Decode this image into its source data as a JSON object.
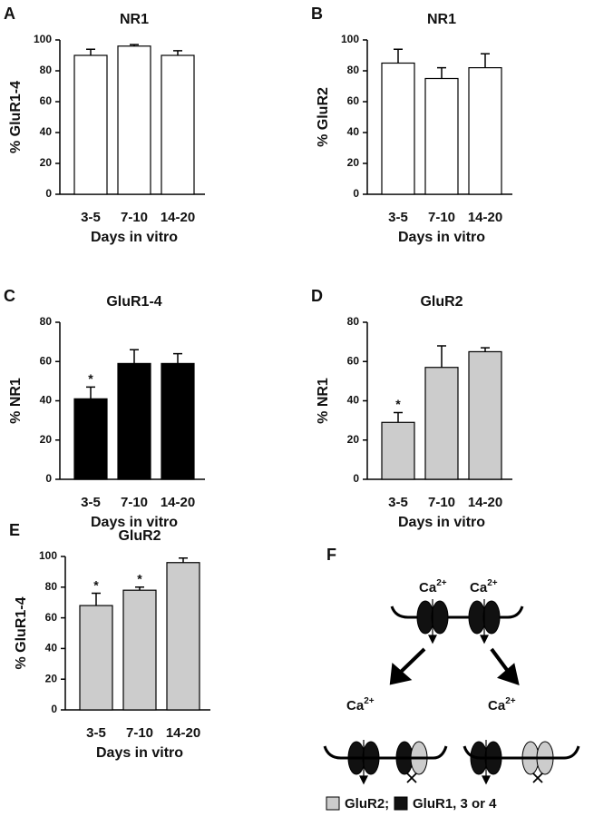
{
  "chart_data": [
    {
      "panel": "A",
      "type": "bar",
      "title": "NR1",
      "ylabel": "% GluR1-4",
      "xlabel": "Days in vitro",
      "categories": [
        "3-5",
        "7-10",
        "14-20"
      ],
      "values": [
        90,
        96,
        90
      ],
      "errors": [
        4,
        1,
        3
      ],
      "color": "#ffffff",
      "ylim": [
        0,
        100
      ],
      "yticks": [
        0,
        20,
        40,
        60,
        80,
        100
      ]
    },
    {
      "panel": "B",
      "type": "bar",
      "title": "NR1",
      "ylabel": "% GluR2",
      "xlabel": "Days in vitro",
      "categories": [
        "3-5",
        "7-10",
        "14-20"
      ],
      "values": [
        85,
        75,
        82
      ],
      "errors": [
        9,
        7,
        9
      ],
      "color": "#ffffff",
      "ylim": [
        0,
        100
      ],
      "yticks": [
        0,
        20,
        40,
        60,
        80,
        100
      ]
    },
    {
      "panel": "C",
      "type": "bar",
      "title": "GluR1-4",
      "ylabel": "% NR1",
      "xlabel": "Days in vitro",
      "categories": [
        "3-5",
        "7-10",
        "14-20"
      ],
      "values": [
        41,
        59,
        59
      ],
      "errors": [
        6,
        7,
        5
      ],
      "markers": [
        "*",
        null,
        null
      ],
      "color": "#000000",
      "ylim": [
        0,
        80
      ],
      "yticks": [
        0,
        20,
        40,
        60,
        80
      ]
    },
    {
      "panel": "D",
      "type": "bar",
      "title": "GluR2",
      "ylabel": "% NR1",
      "xlabel": "Days in vitro",
      "categories": [
        "3-5",
        "7-10",
        "14-20"
      ],
      "values": [
        29,
        57,
        65
      ],
      "errors": [
        5,
        11,
        2
      ],
      "markers": [
        "*",
        null,
        null
      ],
      "color": "#cccccc",
      "ylim": [
        0,
        80
      ],
      "yticks": [
        0,
        20,
        40,
        60,
        80
      ]
    },
    {
      "panel": "E",
      "type": "bar",
      "title": "GluR2",
      "ylabel": "% GluR1-4",
      "xlabel": "Days in vitro",
      "categories": [
        "3-5",
        "7-10",
        "14-20"
      ],
      "values": [
        68,
        78,
        96
      ],
      "errors": [
        8,
        2,
        3
      ],
      "markers": [
        "*",
        "*",
        null
      ],
      "color": "#cccccc",
      "ylim": [
        0,
        100
      ],
      "yticks": [
        0,
        20,
        40,
        60,
        80,
        100
      ]
    }
  ],
  "diagram": {
    "panel": "F",
    "ion": "Ca",
    "charge": "2+",
    "legend": [
      "GluR2;",
      "GluR1, 3 or 4"
    ]
  }
}
